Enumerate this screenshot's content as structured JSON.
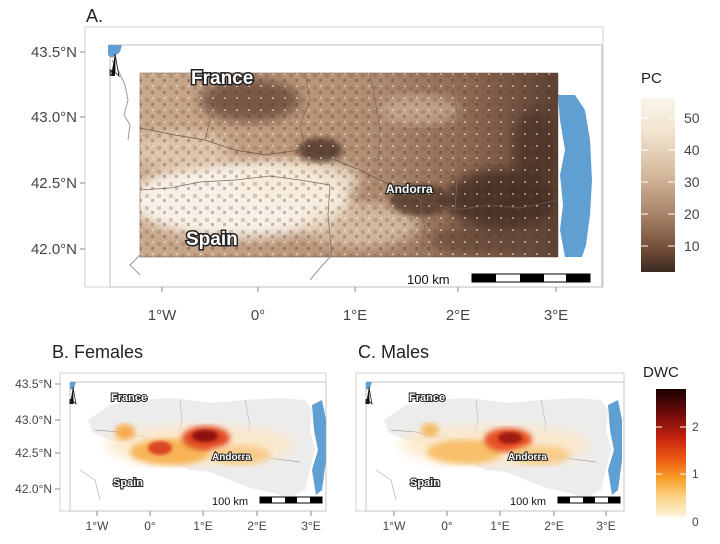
{
  "figure": {
    "panels": [
      {
        "label": "A.",
        "y_ticks": [
          "43.5°N",
          "43.0°N",
          "42.5°N",
          "42.0°N"
        ],
        "x_ticks": [
          "1°W",
          "0°",
          "1°E",
          "2°E",
          "3°E"
        ],
        "place_labels": [
          "France",
          "Spain",
          "Andorra"
        ],
        "scale_bar_label": "100 km",
        "legend": {
          "title": "PC",
          "ticks": [
            "50",
            "40",
            "30",
            "20",
            "10"
          ],
          "colors": [
            "#3b2a22",
            "#6e4a36",
            "#a07b62",
            "#d3b79b",
            "#f1e3cd",
            "#fbf5ec"
          ]
        }
      },
      {
        "label": "B. Females",
        "y_ticks": [
          "43.5°N",
          "43.0°N",
          "42.5°N",
          "42.0°N"
        ],
        "x_ticks": [
          "1°W",
          "0°",
          "1°E",
          "2°E",
          "3°E"
        ],
        "place_labels": [
          "France",
          "Spain",
          "Andorra"
        ],
        "scale_bar_label": "100 km"
      },
      {
        "label": "C. Males",
        "x_ticks": [
          "1°W",
          "0°",
          "1°E",
          "2°E",
          "3°E"
        ],
        "place_labels": [
          "France",
          "Spain",
          "Andorra"
        ],
        "scale_bar_label": "100 km"
      }
    ],
    "dwc_legend": {
      "title": "DWC",
      "ticks": [
        "2",
        "1",
        "0"
      ],
      "colors": [
        "#1a0000",
        "#6a0a0a",
        "#c4220f",
        "#ee5b12",
        "#f9a12a",
        "#fbd58a",
        "#fff3dd"
      ]
    },
    "colors": {
      "sea": "#5f9fd1",
      "frame": "#c8c8c8",
      "land_border": "#8a8a8a"
    }
  }
}
